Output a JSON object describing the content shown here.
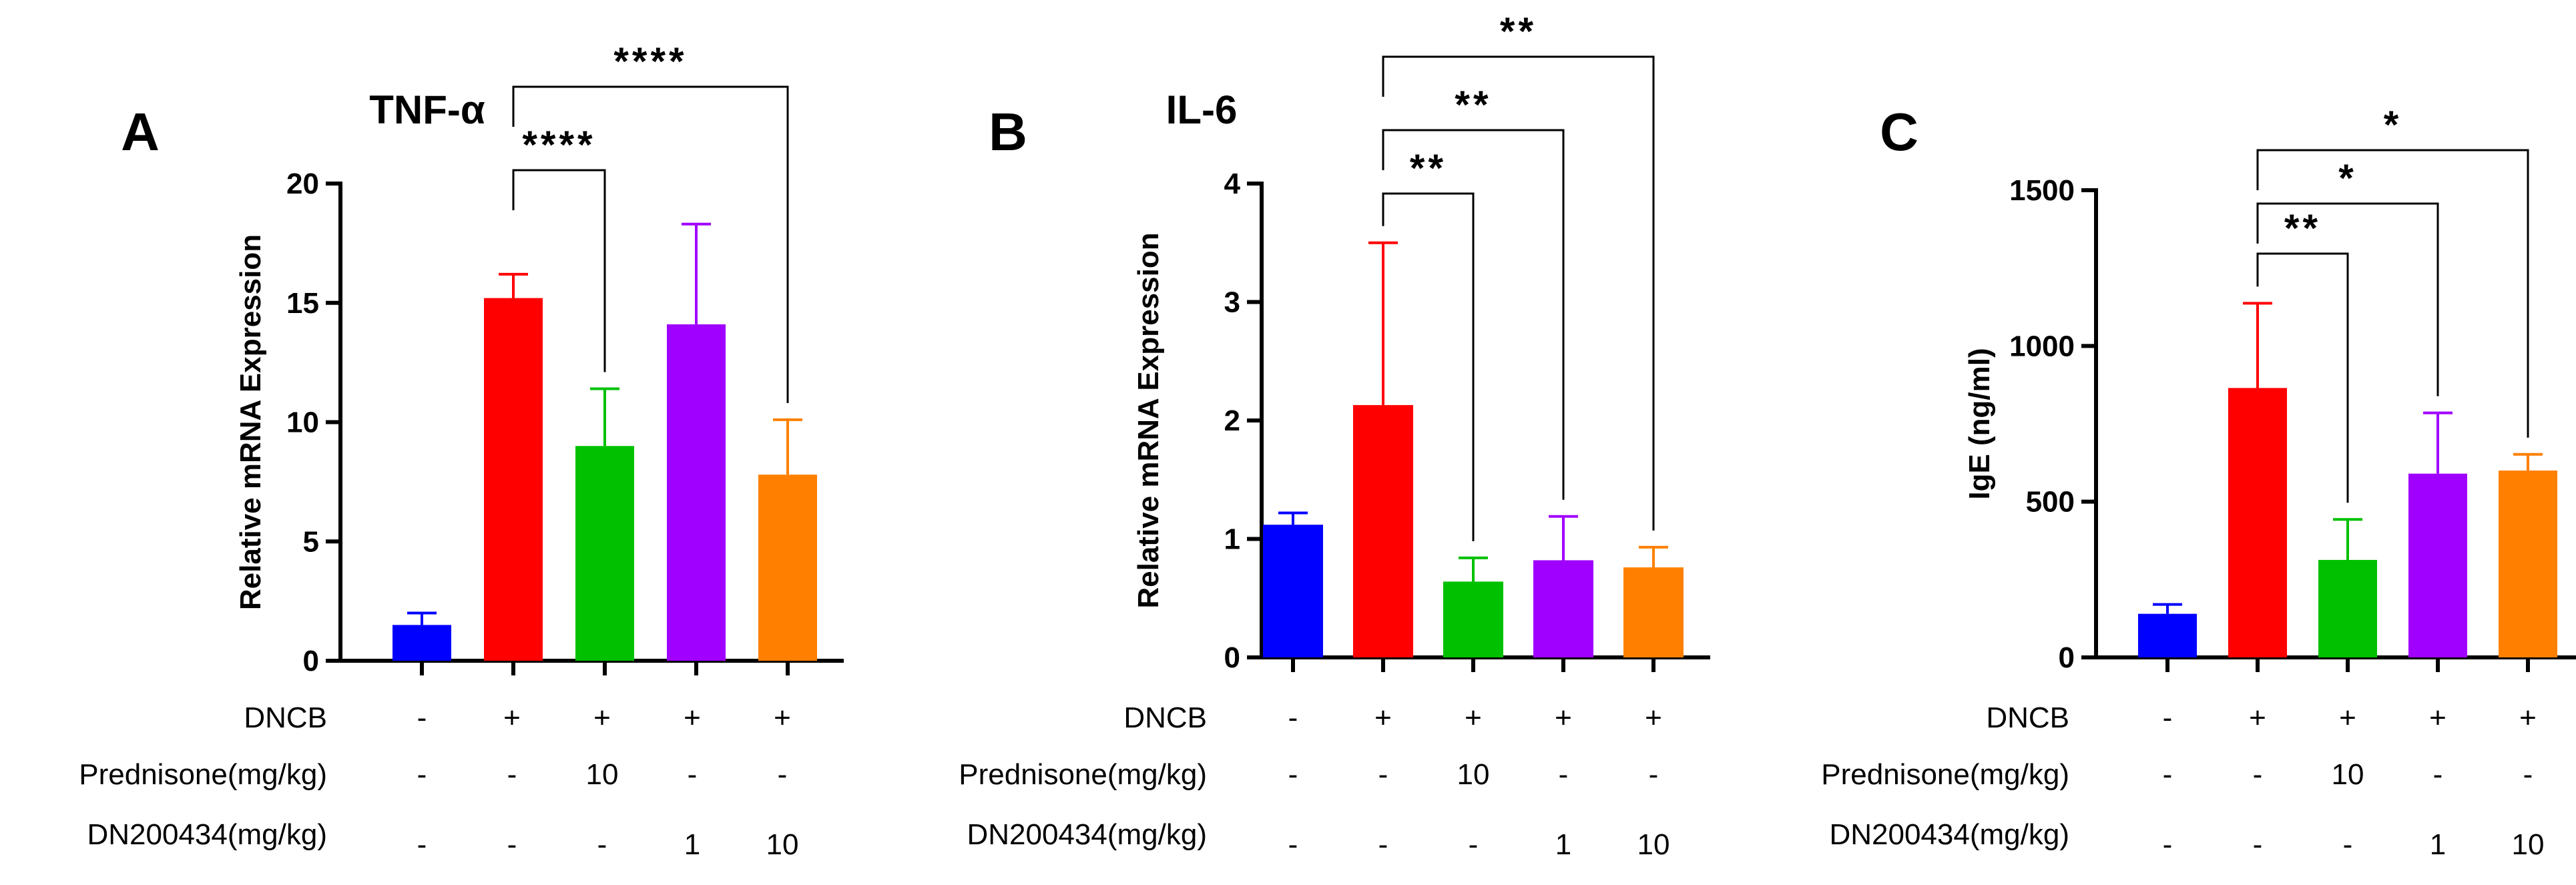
{
  "chart_data": [
    {
      "type": "bar",
      "panel": "A",
      "title": "TNF-α",
      "ylabel": "Relative mRNA Expression",
      "ylim": [
        0,
        20
      ],
      "yticks": [
        "0",
        "5",
        "10",
        "15",
        "20"
      ],
      "colors": [
        "#0000ff",
        "#ff0000",
        "#00c000",
        "#a000ff",
        "#ff8000"
      ],
      "values": [
        1.5,
        15.2,
        9.0,
        14.1,
        7.8
      ],
      "errors": [
        0.5,
        1.0,
        2.4,
        4.2,
        2.3
      ],
      "significance": [
        {
          "from": 1,
          "to": 2,
          "label": "****"
        },
        {
          "from": 1,
          "to": 4,
          "label": "****"
        }
      ],
      "conditions": [
        {
          "label": "DNCB",
          "values": [
            "-",
            "+",
            "+",
            "+",
            "+"
          ]
        },
        {
          "label": "Prednisone(mg/kg)",
          "values": [
            "-",
            "-",
            "10",
            "-",
            "-"
          ]
        },
        {
          "label": "DN200434(mg/kg)",
          "values": [
            "-",
            "-",
            "-",
            "1",
            "10"
          ]
        }
      ]
    },
    {
      "type": "bar",
      "panel": "B",
      "title": "IL-6",
      "ylabel": "Relative mRNA Expression",
      "ylim": [
        0,
        4
      ],
      "yticks": [
        "0",
        "1",
        "2",
        "3",
        "4"
      ],
      "colors": [
        "#0000ff",
        "#ff0000",
        "#00c000",
        "#a000ff",
        "#ff8000"
      ],
      "values": [
        1.12,
        2.13,
        0.64,
        0.82,
        0.76
      ],
      "errors": [
        0.1,
        1.37,
        0.2,
        0.37,
        0.17
      ],
      "significance": [
        {
          "from": 1,
          "to": 2,
          "label": "**"
        },
        {
          "from": 1,
          "to": 3,
          "label": "**"
        },
        {
          "from": 1,
          "to": 4,
          "label": "**"
        }
      ],
      "conditions": [
        {
          "label": "DNCB",
          "values": [
            "-",
            "+",
            "+",
            "+",
            "+"
          ]
        },
        {
          "label": "Prednisone(mg/kg)",
          "values": [
            "-",
            "-",
            "10",
            "-",
            "-"
          ]
        },
        {
          "label": "DN200434(mg/kg)",
          "values": [
            "-",
            "-",
            "-",
            "1",
            "10"
          ]
        }
      ]
    },
    {
      "type": "bar",
      "panel": "C",
      "title": "",
      "ylabel": "IgE (ng/ml)",
      "ylim": [
        0,
        1500
      ],
      "yticks": [
        "0",
        "500",
        "1000",
        "1500"
      ],
      "colors": [
        "#0000ff",
        "#ff0000",
        "#00c000",
        "#a000ff",
        "#ff8000"
      ],
      "values": [
        140,
        865,
        313,
        590,
        600
      ],
      "errors": [
        30,
        272,
        130,
        195,
        52
      ],
      "significance": [
        {
          "from": 1,
          "to": 2,
          "label": "**"
        },
        {
          "from": 1,
          "to": 3,
          "label": "*"
        },
        {
          "from": 1,
          "to": 4,
          "label": "*"
        }
      ],
      "conditions": [
        {
          "label": "DNCB",
          "values": [
            "-",
            "+",
            "+",
            "+",
            "+"
          ]
        },
        {
          "label": "Prednisone(mg/kg)",
          "values": [
            "-",
            "-",
            "10",
            "-",
            "-"
          ]
        },
        {
          "label": "DN200434(mg/kg)",
          "values": [
            "-",
            "-",
            "-",
            "1",
            "10"
          ]
        }
      ]
    }
  ]
}
